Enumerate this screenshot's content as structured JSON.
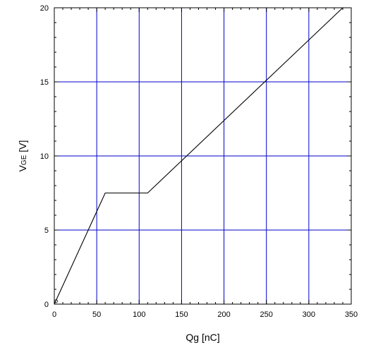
{
  "chart_data": {
    "type": "line",
    "title": "",
    "xlabel": "Qg [nC]",
    "ylabel": {
      "main": "V",
      "sub": "GE",
      "unit": " [V]"
    },
    "xlim": [
      0,
      350
    ],
    "ylim": [
      0,
      20
    ],
    "xticks": [
      0,
      50,
      100,
      150,
      200,
      250,
      300,
      350
    ],
    "yticks": [
      0,
      5,
      10,
      15,
      20
    ],
    "x_minor_step": 10,
    "y_minor_step": 1,
    "grid": true,
    "colors": {
      "grid": "#0000cc",
      "line": "#000000",
      "axis": "#000000"
    },
    "series": [
      {
        "points": [
          [
            0,
            0
          ],
          [
            60,
            7.5
          ],
          [
            110,
            7.5
          ],
          [
            340,
            20
          ]
        ]
      }
    ]
  }
}
